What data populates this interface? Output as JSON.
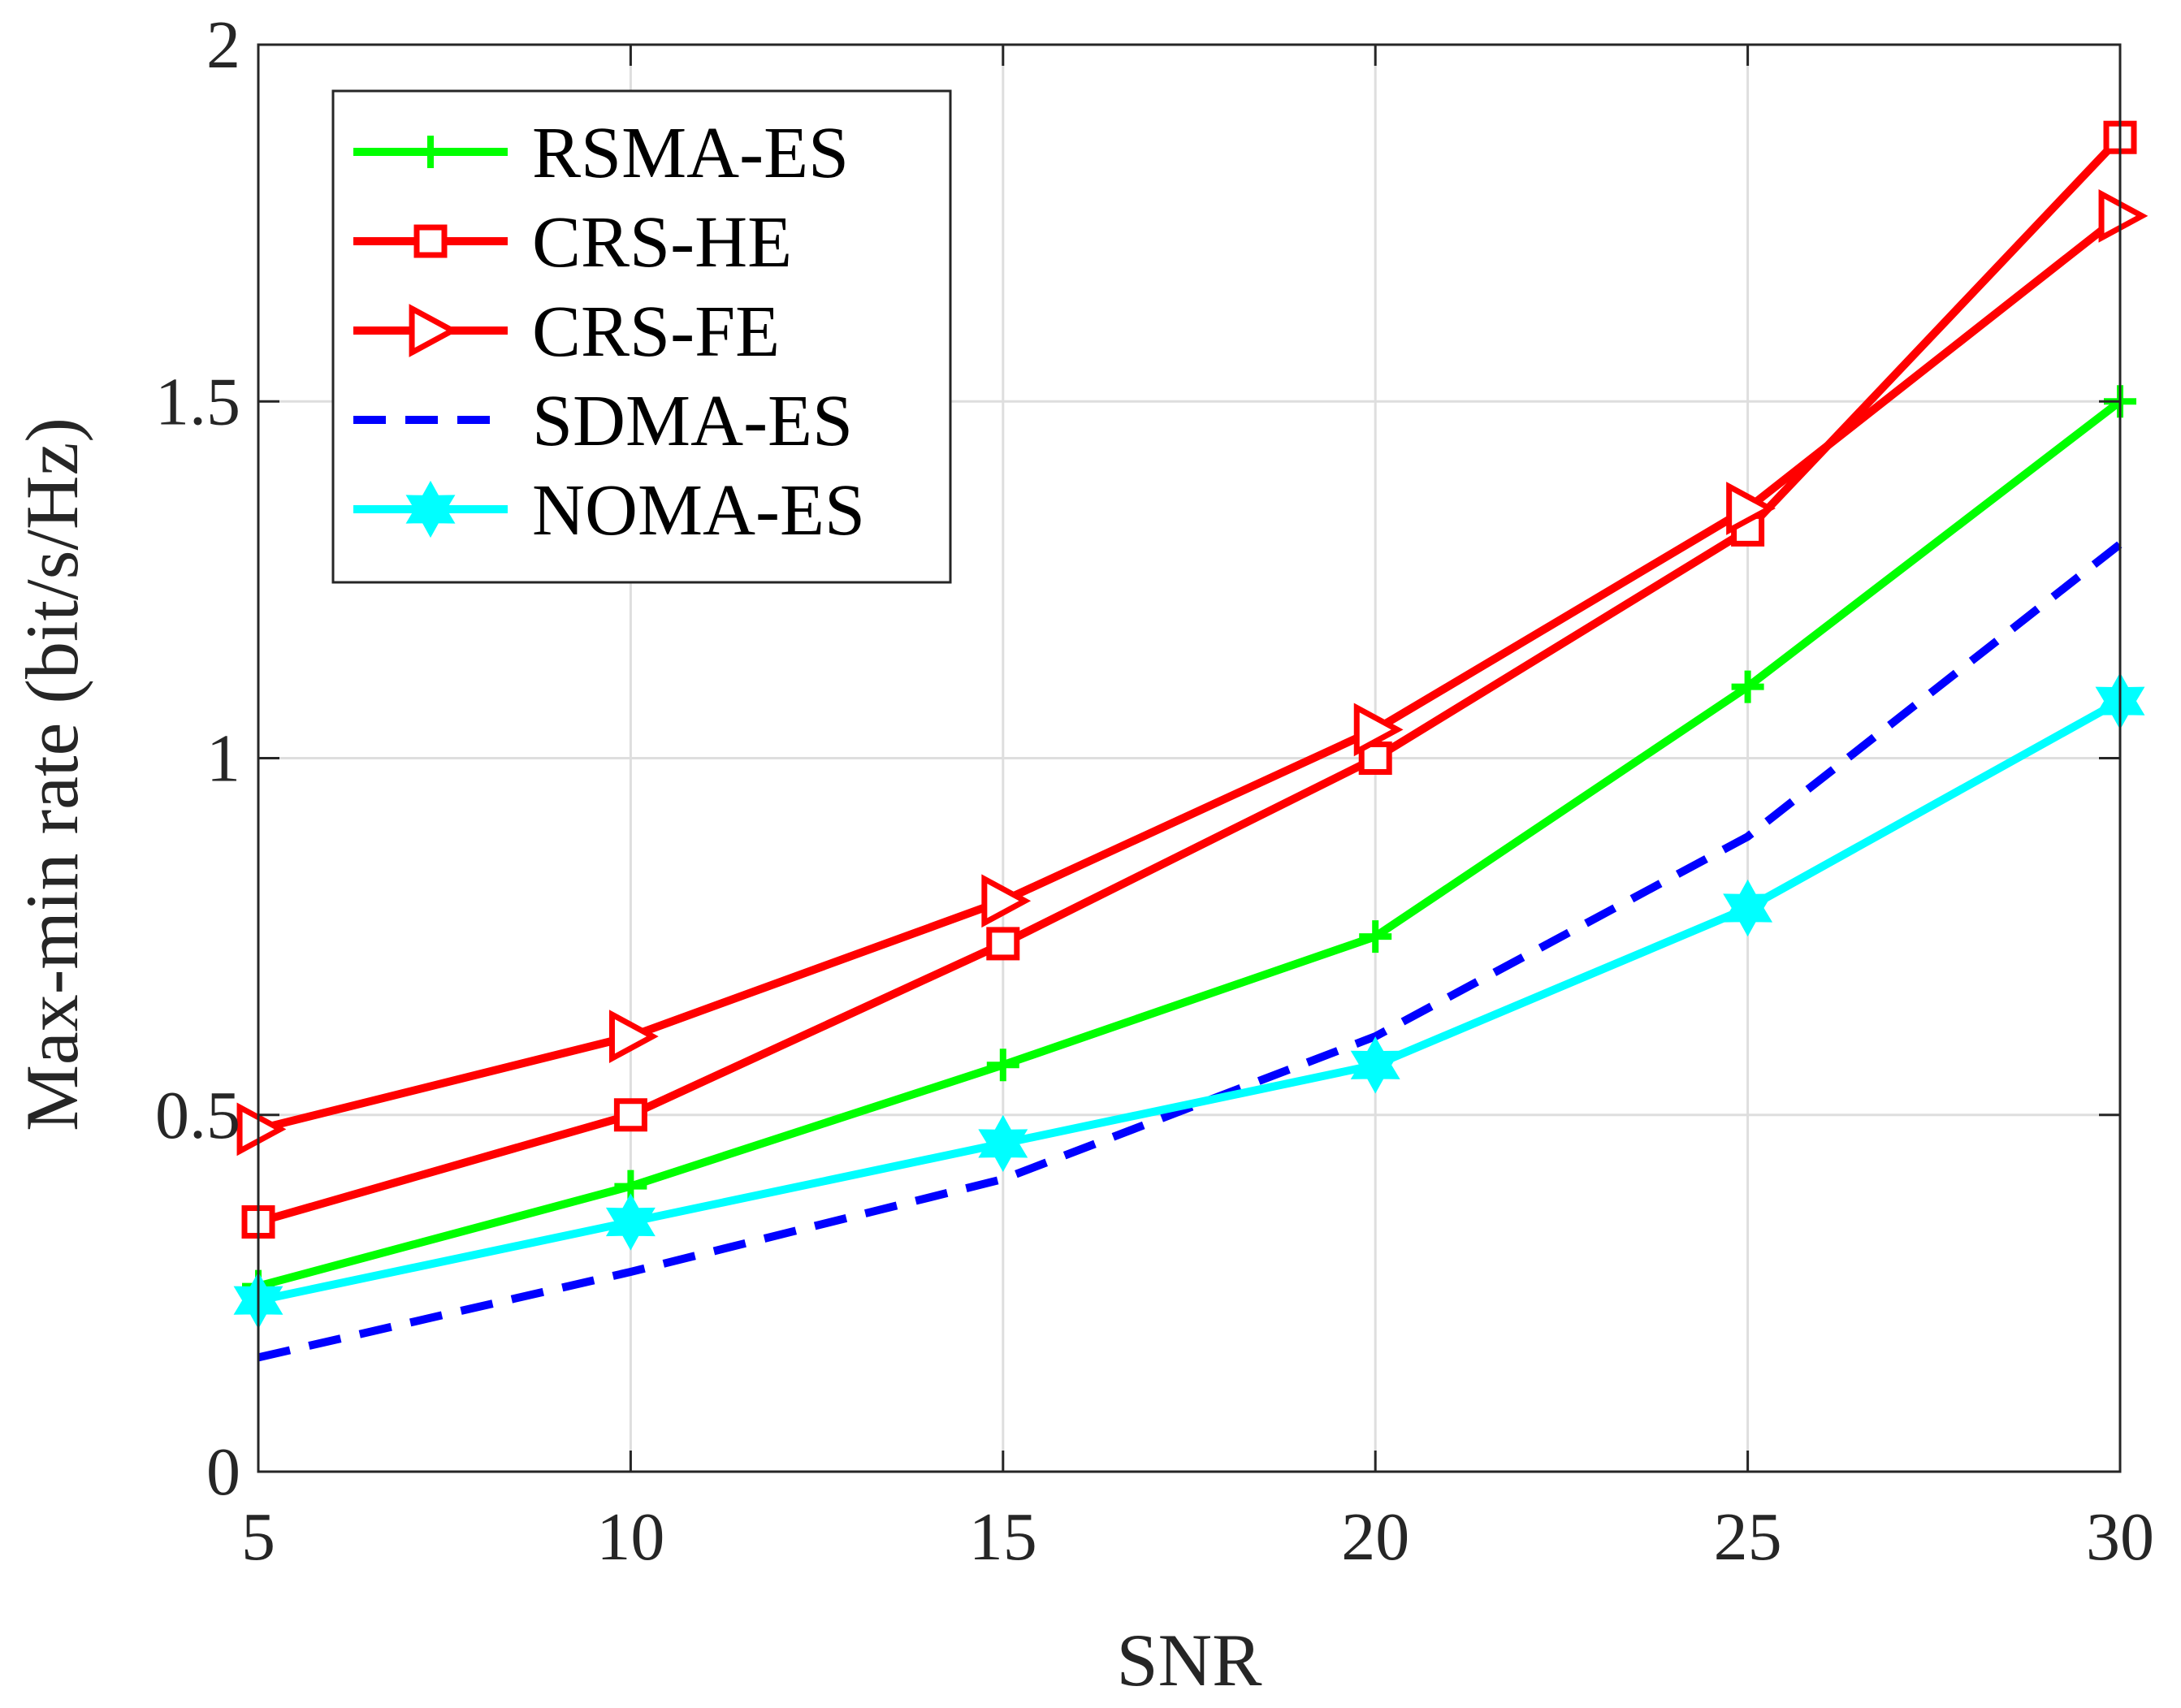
{
  "chart_data": {
    "type": "line",
    "title": "",
    "xlabel": "SNR",
    "ylabel": "Max-min rate (bit/s/Hz)",
    "xlim": [
      5,
      30
    ],
    "ylim": [
      0,
      2
    ],
    "xticks": [
      5,
      10,
      15,
      20,
      25,
      30
    ],
    "yticks": [
      0,
      0.5,
      1,
      1.5,
      2
    ],
    "xtick_labels": [
      "5",
      "10",
      "15",
      "20",
      "25",
      "30"
    ],
    "ytick_labels": [
      "0",
      "0.5",
      "1",
      "1.5",
      "2"
    ],
    "grid": true,
    "legend_position": "top-left",
    "x": [
      5,
      10,
      15,
      20,
      25,
      30
    ],
    "series": [
      {
        "name": "RSMA-ES",
        "values": [
          0.26,
          0.4,
          0.57,
          0.75,
          1.1,
          1.5
        ],
        "color": "#00ff00",
        "marker": "plus",
        "line_style": "solid"
      },
      {
        "name": "CRS-HE",
        "values": [
          0.35,
          0.5,
          0.74,
          1.0,
          1.32,
          1.87
        ],
        "color": "#ff0000",
        "marker": "square",
        "line_style": "solid"
      },
      {
        "name": "CRS-FE",
        "values": [
          0.48,
          0.61,
          0.8,
          1.04,
          1.35,
          1.76
        ],
        "color": "#ff0000",
        "marker": "triangle-right",
        "line_style": "solid"
      },
      {
        "name": "SDMA-ES",
        "values": [
          0.16,
          0.28,
          0.41,
          0.61,
          0.89,
          1.3
        ],
        "color": "#0000ff",
        "marker": "none",
        "line_style": "dashed"
      },
      {
        "name": "NOMA-ES",
        "values": [
          0.24,
          0.35,
          0.46,
          0.57,
          0.79,
          1.08
        ],
        "color": "#00ffff",
        "marker": "hexagram",
        "line_style": "solid"
      }
    ]
  }
}
